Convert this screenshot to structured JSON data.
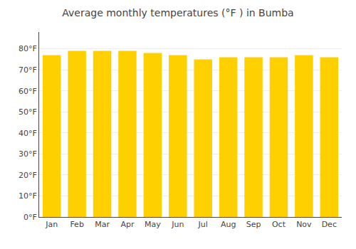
{
  "chart_data": {
    "type": "bar",
    "title": "Average monthly temperatures (°F ) in Bumba",
    "categories": [
      "Jan",
      "Feb",
      "Mar",
      "Apr",
      "May",
      "Jun",
      "Jul",
      "Aug",
      "Sep",
      "Oct",
      "Nov",
      "Dec"
    ],
    "values": [
      77,
      79,
      79,
      79,
      78,
      77,
      75,
      76,
      76,
      76,
      77,
      76
    ],
    "color": "#FFD000",
    "ylim": [
      0,
      88
    ],
    "yticks": [
      {
        "value": 0,
        "label": "0°F"
      },
      {
        "value": 10,
        "label": "10°F"
      },
      {
        "value": 20,
        "label": "20°F"
      },
      {
        "value": 30,
        "label": "30°F"
      },
      {
        "value": 40,
        "label": "40°F"
      },
      {
        "value": 50,
        "label": "50°F"
      },
      {
        "value": 60,
        "label": "60°F"
      },
      {
        "value": 70,
        "label": "70°F"
      },
      {
        "value": 80,
        "label": "80°F"
      }
    ],
    "grid": true
  }
}
